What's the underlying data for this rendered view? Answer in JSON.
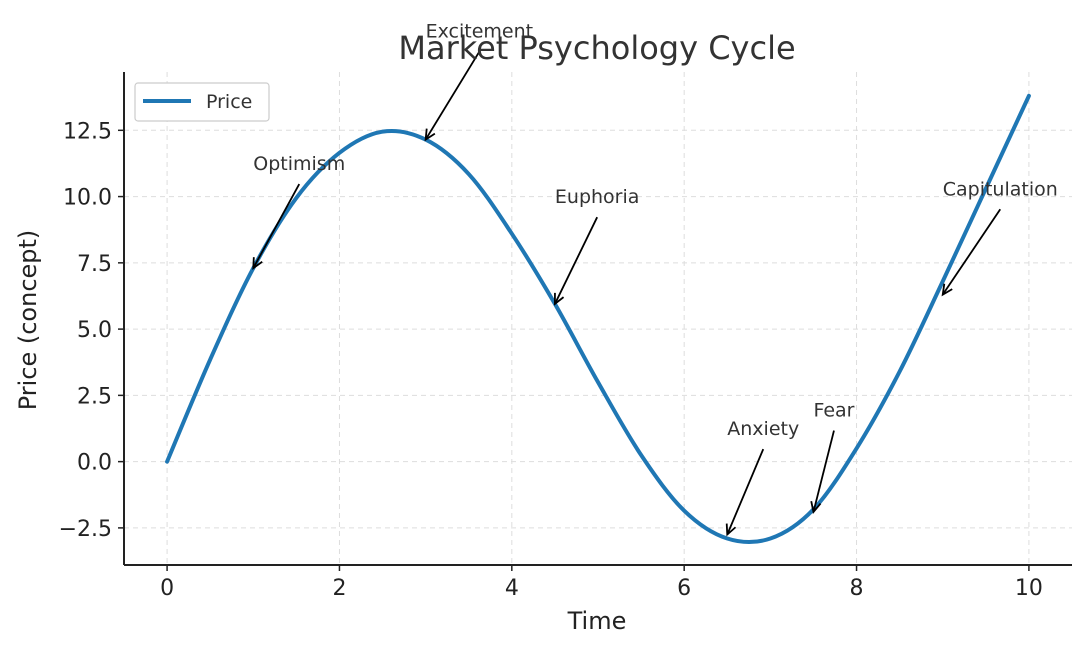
{
  "chart_data": {
    "type": "line",
    "title": "Market Psychology Cycle",
    "xlabel": "Time",
    "ylabel": "Price (concept)",
    "xlim": [
      -0.5,
      10.5
    ],
    "ylim": [
      -3.9,
      14.7
    ],
    "xticks": [
      0,
      2,
      4,
      6,
      8,
      10
    ],
    "xtick_labels": [
      "0",
      "2",
      "4",
      "6",
      "8",
      "10"
    ],
    "yticks": [
      -2.5,
      0.0,
      2.5,
      5.0,
      7.5,
      10.0,
      12.5
    ],
    "ytick_labels": [
      "−2.5",
      "0.0",
      "2.5",
      "5.0",
      "7.5",
      "10.0",
      "12.5"
    ],
    "grid": true,
    "legend": {
      "placement": "upper-left",
      "entries": [
        "Price"
      ]
    },
    "series": [
      {
        "name": "Price",
        "color": "#1f77b4",
        "x": [
          0,
          0.5,
          1,
          1.5,
          2,
          2.5,
          3,
          3.5,
          4,
          4.5,
          5,
          5.5,
          6,
          6.5,
          7,
          7.5,
          8,
          8.5,
          9,
          9.5,
          10
        ],
        "y": [
          0.0,
          3.85,
          7.3,
          9.95,
          11.65,
          12.45,
          12.15,
          10.85,
          8.6,
          5.95,
          3.0,
          0.25,
          -1.85,
          -2.9,
          -2.9,
          -1.8,
          0.5,
          3.4,
          6.8,
          10.3,
          13.8
        ]
      }
    ],
    "annotations": [
      {
        "text": "Optimism",
        "x": 1.0,
        "y": 7.3,
        "text_x": 1.0,
        "text_y": 11.0
      },
      {
        "text": "Excitement",
        "x": 3.0,
        "y": 12.15,
        "text_x": 3.0,
        "text_y": 16.0
      },
      {
        "text": "Euphoria",
        "x": 4.5,
        "y": 5.95,
        "text_x": 4.5,
        "text_y": 9.75
      },
      {
        "text": "Anxiety",
        "x": 6.5,
        "y": -2.75,
        "text_x": 6.5,
        "text_y": 1.0
      },
      {
        "text": "Fear",
        "x": 7.5,
        "y": -1.9,
        "text_x": 7.5,
        "text_y": 1.7
      },
      {
        "text": "Capitulation",
        "x": 9.0,
        "y": 6.3,
        "text_x": 9.0,
        "text_y": 10.05
      }
    ]
  }
}
